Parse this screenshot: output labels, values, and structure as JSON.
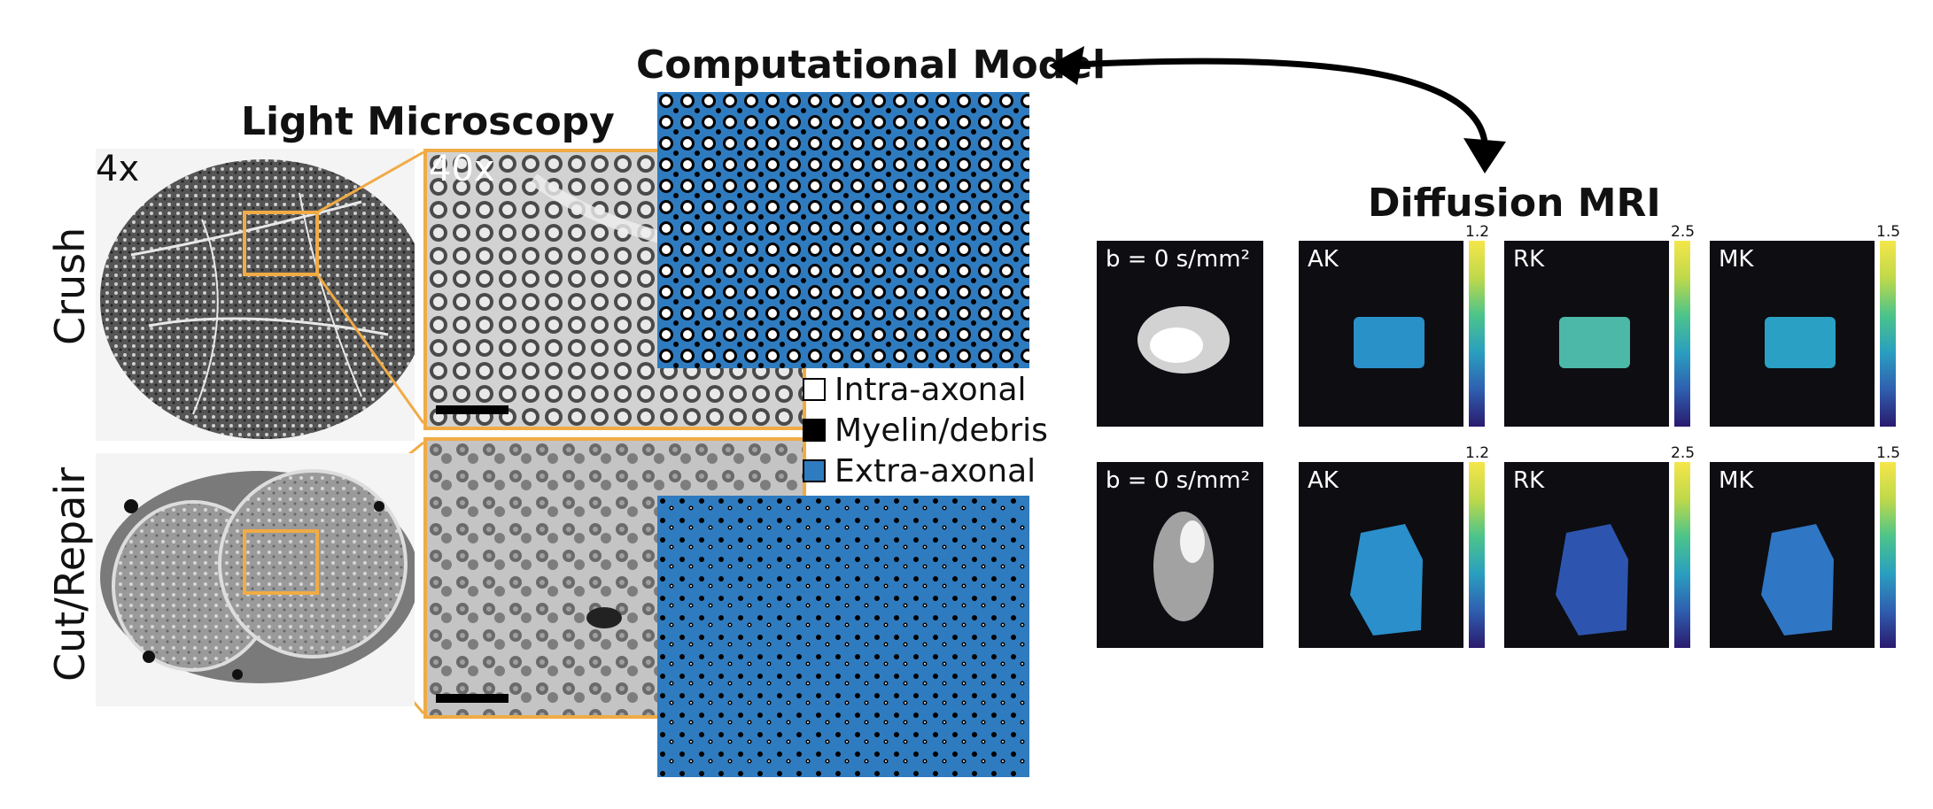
{
  "titles": {
    "light_microscopy": "Light Microscopy",
    "computational_model": "Computational Model",
    "diffusion_mri": "Diffusion MRI"
  },
  "rows": {
    "crush": "Crush",
    "cut_repair": "Cut/Repair"
  },
  "magnifications": {
    "low": "4x",
    "high": "40x"
  },
  "legend": [
    {
      "label": "Intra-axonal",
      "color": "#ffffff"
    },
    {
      "label": "Myelin/debris",
      "color": "#000000"
    },
    {
      "label": "Extra-axonal",
      "color": "#2f7bbf"
    }
  ],
  "mri": {
    "b0_label": "b = 0 s/mm²",
    "maps": [
      {
        "name": "AK",
        "max": "1.2"
      },
      {
        "name": "RK",
        "max": "2.5"
      },
      {
        "name": "MK",
        "max": "1.5"
      }
    ]
  },
  "colors": {
    "zoom_box": "#f0ab45",
    "model_blue": "#2f7bbf",
    "mri_background": "#0d0d12"
  }
}
